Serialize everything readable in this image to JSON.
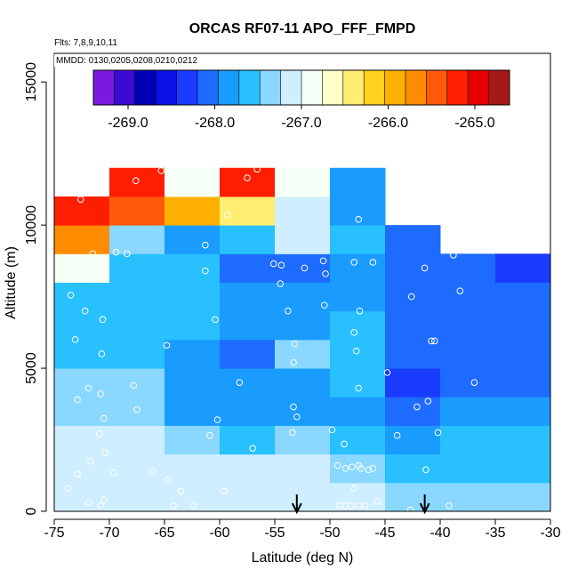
{
  "chart_data": {
    "type": "heatmap",
    "title": "ORCAS RF07-11 APO_FFF_FMPD",
    "flights_note": "Flts: 7,8,9,10,11",
    "dates_note": "MMDD: 0130,0205,0208,0210,0212",
    "xlabel": "Latitude (deg N)",
    "ylabel": "Altitude (m)",
    "xlim": [
      -75,
      -30
    ],
    "ylim": [
      0,
      16000
    ],
    "x_ticks": [
      -75,
      -70,
      -65,
      -60,
      -55,
      -50,
      -45,
      -40,
      -35,
      -30
    ],
    "x_tick_labels": [
      "-75",
      "-70",
      "-65",
      "-60",
      "-55",
      "-50",
      "-45",
      "-40",
      "-35",
      "-30"
    ],
    "y_ticks": [
      0,
      5000,
      10000,
      15000
    ],
    "y_tick_labels": [
      "0",
      "5000",
      "10000",
      "15000"
    ],
    "colorbar": {
      "min": -269.4,
      "max": -264.6,
      "ticks": [
        -269,
        -268,
        -267,
        -266,
        -265
      ],
      "tick_labels": [
        "-269.0",
        "-268.0",
        "-267.0",
        "-266.0",
        "-265.0"
      ],
      "colors": [
        "#7a1ae0",
        "#3a0bd0",
        "#0000b4",
        "#0a12e6",
        "#1a3cff",
        "#1e6cff",
        "#1a9cff",
        "#28c0ff",
        "#8ad8ff",
        "#cfeeff",
        "#f6fff6",
        "#ffffc8",
        "#ffee70",
        "#ffd21e",
        "#ffb000",
        "#ff8c00",
        "#ff5a0a",
        "#ff1e00",
        "#e60000",
        "#a61818"
      ]
    },
    "cell_width_deg": 5,
    "cell_height_m": 1000,
    "cells": [
      {
        "x": -75,
        "y": 0,
        "v": -267.1
      },
      {
        "x": -75,
        "y": 1000,
        "v": -267.1
      },
      {
        "x": -75,
        "y": 2000,
        "v": -267.1
      },
      {
        "x": -75,
        "y": 3000,
        "v": -267.4
      },
      {
        "x": -75,
        "y": 4000,
        "v": -267.3
      },
      {
        "x": -75,
        "y": 5000,
        "v": -267.5
      },
      {
        "x": -75,
        "y": 6000,
        "v": -267.6
      },
      {
        "x": -75,
        "y": 7000,
        "v": -267.7
      },
      {
        "x": -75,
        "y": 8000,
        "v": -266.9
      },
      {
        "x": -75,
        "y": 9000,
        "v": -265.7
      },
      {
        "x": -75,
        "y": 10000,
        "v": -265.1
      },
      {
        "x": -70,
        "y": 0,
        "v": -267.1
      },
      {
        "x": -70,
        "y": 1000,
        "v": -267.1
      },
      {
        "x": -70,
        "y": 2000,
        "v": -267.1
      },
      {
        "x": -70,
        "y": 3000,
        "v": -267.3
      },
      {
        "x": -70,
        "y": 4000,
        "v": -267.3
      },
      {
        "x": -70,
        "y": 5000,
        "v": -267.5
      },
      {
        "x": -70,
        "y": 6000,
        "v": -267.6
      },
      {
        "x": -70,
        "y": 7000,
        "v": -267.5
      },
      {
        "x": -70,
        "y": 8000,
        "v": -267.7
      },
      {
        "x": -70,
        "y": 9000,
        "v": -267.4
      },
      {
        "x": -70,
        "y": 10000,
        "v": -265.5
      },
      {
        "x": -70,
        "y": 11000,
        "v": -265.1
      },
      {
        "x": -65,
        "y": 0,
        "v": -267.1
      },
      {
        "x": -65,
        "y": 1000,
        "v": -267.1
      },
      {
        "x": -65,
        "y": 2000,
        "v": -267.3
      },
      {
        "x": -65,
        "y": 3000,
        "v": -267.9
      },
      {
        "x": -65,
        "y": 4000,
        "v": -267.8
      },
      {
        "x": -65,
        "y": 5000,
        "v": -267.8
      },
      {
        "x": -65,
        "y": 6000,
        "v": -267.7
      },
      {
        "x": -65,
        "y": 7000,
        "v": -267.7
      },
      {
        "x": -65,
        "y": 8000,
        "v": -267.7
      },
      {
        "x": -65,
        "y": 9000,
        "v": -267.9
      },
      {
        "x": -65,
        "y": 10000,
        "v": -265.9
      },
      {
        "x": -65,
        "y": 11000,
        "v": -266.9
      },
      {
        "x": -60,
        "y": 0,
        "v": -267.2
      },
      {
        "x": -60,
        "y": 1000,
        "v": -267.2
      },
      {
        "x": -60,
        "y": 2000,
        "v": -267.6
      },
      {
        "x": -60,
        "y": 3000,
        "v": -267.8
      },
      {
        "x": -60,
        "y": 4000,
        "v": -267.8
      },
      {
        "x": -60,
        "y": 5000,
        "v": -268.0
      },
      {
        "x": -60,
        "y": 6000,
        "v": -267.8
      },
      {
        "x": -60,
        "y": 7000,
        "v": -267.9
      },
      {
        "x": -60,
        "y": 8000,
        "v": -268.0
      },
      {
        "x": -60,
        "y": 9000,
        "v": -267.5
      },
      {
        "x": -60,
        "y": 10000,
        "v": -266.3
      },
      {
        "x": -60,
        "y": 11000,
        "v": -265.3
      },
      {
        "x": -55,
        "y": 0,
        "v": -267.2
      },
      {
        "x": -55,
        "y": 1000,
        "v": -267.2
      },
      {
        "x": -55,
        "y": 2000,
        "v": -267.4
      },
      {
        "x": -55,
        "y": 3000,
        "v": -267.8
      },
      {
        "x": -55,
        "y": 4000,
        "v": -267.8
      },
      {
        "x": -55,
        "y": 5000,
        "v": -267.3
      },
      {
        "x": -55,
        "y": 6000,
        "v": -267.8
      },
      {
        "x": -55,
        "y": 7000,
        "v": -267.8
      },
      {
        "x": -55,
        "y": 8000,
        "v": -268.0
      },
      {
        "x": -55,
        "y": 9000,
        "v": -267.2
      },
      {
        "x": -55,
        "y": 10000,
        "v": -267.2
      },
      {
        "x": -55,
        "y": 11000,
        "v": -266.8
      },
      {
        "x": -50,
        "y": 0,
        "v": -267.2
      },
      {
        "x": -50,
        "y": 1000,
        "v": -267.3
      },
      {
        "x": -50,
        "y": 2000,
        "v": -267.6
      },
      {
        "x": -50,
        "y": 3000,
        "v": -267.8
      },
      {
        "x": -50,
        "y": 4000,
        "v": -267.6
      },
      {
        "x": -50,
        "y": 5000,
        "v": -267.6
      },
      {
        "x": -50,
        "y": 6000,
        "v": -267.7
      },
      {
        "x": -50,
        "y": 7000,
        "v": -267.9
      },
      {
        "x": -50,
        "y": 8000,
        "v": -267.8
      },
      {
        "x": -50,
        "y": 9000,
        "v": -267.7
      },
      {
        "x": -50,
        "y": 10000,
        "v": -267.9
      },
      {
        "x": -50,
        "y": 11000,
        "v": -267.9
      },
      {
        "x": -45,
        "y": 0,
        "v": -267.3
      },
      {
        "x": -45,
        "y": 1000,
        "v": -267.5
      },
      {
        "x": -45,
        "y": 2000,
        "v": -267.9
      },
      {
        "x": -45,
        "y": 3000,
        "v": -268.0
      },
      {
        "x": -45,
        "y": 4000,
        "v": -268.3
      },
      {
        "x": -45,
        "y": 5000,
        "v": -268.1
      },
      {
        "x": -45,
        "y": 6000,
        "v": -268.2
      },
      {
        "x": -45,
        "y": 7000,
        "v": -268.2
      },
      {
        "x": -45,
        "y": 8000,
        "v": -268.2
      },
      {
        "x": -45,
        "y": 9000,
        "v": -268.2
      },
      {
        "x": -40,
        "y": 0,
        "v": -267.3
      },
      {
        "x": -40,
        "y": 1000,
        "v": -267.5
      },
      {
        "x": -40,
        "y": 2000,
        "v": -267.7
      },
      {
        "x": -40,
        "y": 3000,
        "v": -267.9
      },
      {
        "x": -40,
        "y": 4000,
        "v": -268.0
      },
      {
        "x": -40,
        "y": 5000,
        "v": -268.1
      },
      {
        "x": -40,
        "y": 6000,
        "v": -268.2
      },
      {
        "x": -40,
        "y": 7000,
        "v": -268.2
      },
      {
        "x": -40,
        "y": 8000,
        "v": -268.2
      },
      {
        "x": -35,
        "y": 0,
        "v": -267.3
      },
      {
        "x": -35,
        "y": 1000,
        "v": -267.5
      },
      {
        "x": -35,
        "y": 2000,
        "v": -267.7
      },
      {
        "x": -35,
        "y": 3000,
        "v": -267.8
      },
      {
        "x": -35,
        "y": 4000,
        "v": -268.0
      },
      {
        "x": -35,
        "y": 5000,
        "v": -268.1
      },
      {
        "x": -35,
        "y": 6000,
        "v": -268.2
      },
      {
        "x": -35,
        "y": 7000,
        "v": -268.2
      },
      {
        "x": -35,
        "y": 8000,
        "v": -268.3
      }
    ],
    "points": [
      [
        -72.6,
        10900
      ],
      [
        -71.5,
        9000
      ],
      [
        -72.2,
        7000
      ],
      [
        -73.5,
        7550
      ],
      [
        -73.1,
        6000
      ],
      [
        -70.6,
        6700
      ],
      [
        -69.4,
        9050
      ],
      [
        -68.4,
        9000
      ],
      [
        -70.7,
        5500
      ],
      [
        -71.9,
        4300
      ],
      [
        -72.9,
        3900
      ],
      [
        -70.8,
        4100
      ],
      [
        -70.5,
        3250
      ],
      [
        -70.9,
        2700
      ],
      [
        -70.4,
        2050
      ],
      [
        -69.6,
        1350
      ],
      [
        -71.7,
        1750
      ],
      [
        -72.9,
        1300
      ],
      [
        -73.8,
        800
      ],
      [
        -71.9,
        300
      ],
      [
        -70.5,
        400
      ],
      [
        -70.8,
        200
      ],
      [
        -67.6,
        11550
      ],
      [
        -65.3,
        11900
      ],
      [
        -67.5,
        3550
      ],
      [
        -67.8,
        4400
      ],
      [
        -64.8,
        5800
      ],
      [
        -66.1,
        1400
      ],
      [
        -64.7,
        1100
      ],
      [
        -63.5,
        700
      ],
      [
        -64.2,
        200
      ],
      [
        -62.4,
        200
      ],
      [
        -62.1,
        11900
      ],
      [
        -61.3,
        9300
      ],
      [
        -61.3,
        8400
      ],
      [
        -60.4,
        6700
      ],
      [
        -60.2,
        3200
      ],
      [
        -60.9,
        2650
      ],
      [
        -59.6,
        700
      ],
      [
        -59.3,
        10350
      ],
      [
        -56.6,
        11950
      ],
      [
        -57.5,
        11650
      ],
      [
        -58.2,
        4500
      ],
      [
        -57.0,
        2200
      ],
      [
        -55.1,
        8650
      ],
      [
        -54.4,
        8600
      ],
      [
        -54.5,
        7950
      ],
      [
        -53.8,
        7000
      ],
      [
        -53.2,
        5850
      ],
      [
        -53.3,
        5200
      ],
      [
        -53.3,
        3650
      ],
      [
        -53.0,
        3300
      ],
      [
        -53.4,
        2750
      ],
      [
        -52.3,
        8500
      ],
      [
        -50.6,
        8750
      ],
      [
        -50.4,
        8300
      ],
      [
        -50.5,
        7200
      ],
      [
        -49.8,
        2850
      ],
      [
        -48.7,
        2350
      ],
      [
        -49.3,
        1600
      ],
      [
        -48.6,
        1500
      ],
      [
        -48.0,
        1550
      ],
      [
        -47.4,
        1600
      ],
      [
        -47.2,
        1500
      ],
      [
        -46.5,
        1450
      ],
      [
        -46.1,
        1500
      ],
      [
        -47.4,
        10200
      ],
      [
        -47.8,
        8700
      ],
      [
        -46.1,
        8700
      ],
      [
        -47.3,
        7000
      ],
      [
        -47.8,
        6250
      ],
      [
        -47.6,
        5600
      ],
      [
        -47.4,
        4300
      ],
      [
        -47.8,
        800
      ],
      [
        -49.1,
        200
      ],
      [
        -48.6,
        200
      ],
      [
        -48.1,
        200
      ],
      [
        -47.4,
        200
      ],
      [
        -46.8,
        200
      ],
      [
        -45.7,
        350
      ],
      [
        -44.8,
        4850
      ],
      [
        -43.9,
        2650
      ],
      [
        -42.1,
        3650
      ],
      [
        -41.4,
        8500
      ],
      [
        -42.6,
        7500
      ],
      [
        -40.8,
        5950
      ],
      [
        -40.5,
        5950
      ],
      [
        -41.1,
        3850
      ],
      [
        -40.2,
        2750
      ],
      [
        -41.3,
        1450
      ],
      [
        -38.2,
        7700
      ],
      [
        -38.8,
        8950
      ],
      [
        -36.9,
        4500
      ],
      [
        -39.2,
        200
      ],
      [
        -42.7,
        50
      ]
    ],
    "arrows": [
      {
        "x": -53.0
      },
      {
        "x": -41.4
      }
    ]
  }
}
